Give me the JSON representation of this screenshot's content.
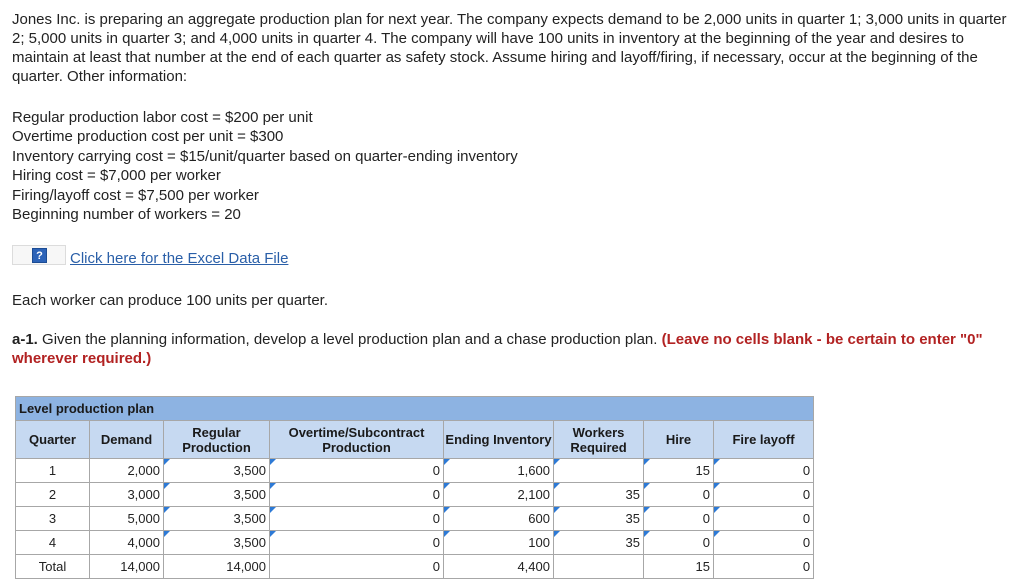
{
  "intro": "Jones Inc. is preparing an aggregate production plan for next year. The company expects demand to be 2,000 units in quarter 1; 3,000 units in quarter 2; 5,000 units in quarter 3; and 4,000 units in quarter 4. The company will have 100 units in inventory at the beginning of the year and desires to maintain at least that number at the end of each quarter as safety stock. Assume hiring and layoff/firing, if necessary, occur at the beginning of the quarter. Other information:",
  "info_lines": [
    "Regular production labor cost = $200 per unit",
    "Overtime production cost per unit = $300",
    "Inventory carrying cost = $15/unit/quarter based on quarter-ending inventory",
    "Hiring cost = $7,000 per worker",
    "Firing/layoff cost = $7,500 per worker",
    "Beginning number of workers = 20"
  ],
  "help_icon_glyph": "?",
  "excel_link": "Click here for the Excel Data File",
  "worker_note": "Each worker can produce 100 units per quarter.",
  "question": {
    "number": "a-1.",
    "text": " Given the planning information, develop a level production plan and a chase production plan. ",
    "warning": "(Leave no cells blank - be certain to enter \"0\" wherever required.)"
  },
  "table": {
    "caption": "Level production plan",
    "headers": {
      "quarter": "Quarter",
      "demand": "Demand",
      "regular": "Regular Production",
      "overtime": "Overtime/Subcontract Production",
      "ending": "Ending Inventory",
      "workers": "Workers Required",
      "hire": "Hire",
      "fire": "Fire layoff"
    },
    "rows": [
      {
        "quarter": "1",
        "demand": "2,000",
        "regular": "3,500",
        "overtime": "0",
        "ending": "1,600",
        "workers": "",
        "hire": "15",
        "fire": "0"
      },
      {
        "quarter": "2",
        "demand": "3,000",
        "regular": "3,500",
        "overtime": "0",
        "ending": "2,100",
        "workers": "35",
        "hire": "0",
        "fire": "0"
      },
      {
        "quarter": "3",
        "demand": "5,000",
        "regular": "3,500",
        "overtime": "0",
        "ending": "600",
        "workers": "35",
        "hire": "0",
        "fire": "0"
      },
      {
        "quarter": "4",
        "demand": "4,000",
        "regular": "3,500",
        "overtime": "0",
        "ending": "100",
        "workers": "35",
        "hire": "0",
        "fire": "0"
      }
    ],
    "total": {
      "quarter": "Total",
      "demand": "14,000",
      "regular": "14,000",
      "overtime": "0",
      "ending": "4,400",
      "workers": "",
      "hire": "15",
      "fire": "0"
    }
  },
  "colors": {
    "caption_bg": "#8db3e2",
    "header_bg": "#c6d9f1",
    "warning_text": "#b22222",
    "link_text": "#2a5fa8",
    "input_marker": "#2d7ad6"
  }
}
